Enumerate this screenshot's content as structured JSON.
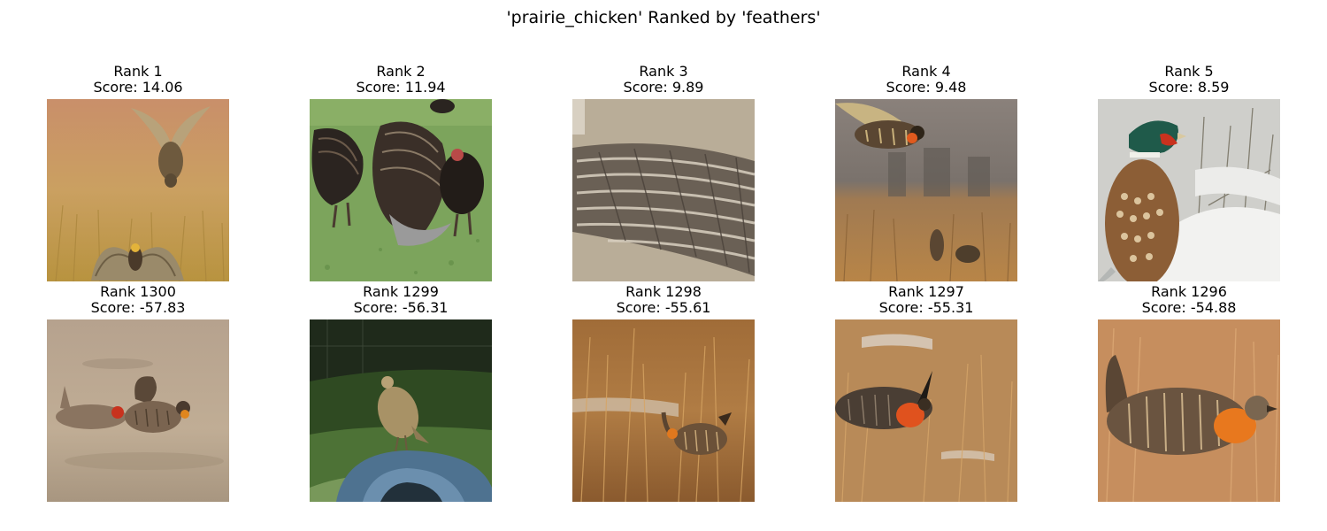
{
  "figure": {
    "title": "'prairie_chicken' Ranked by 'feathers'"
  },
  "top_row": [
    {
      "rank": "Rank 1",
      "score": "Score: 14.06",
      "scene": "two prairie chickens leaping over golden grass",
      "palette": {
        "bg": "#c99b6b",
        "ground": "#c7a45c",
        "bird": "#8f7650"
      }
    },
    {
      "rank": "Rank 2",
      "score": "Score: 11.94",
      "scene": "turkeys displaying on green lawn",
      "palette": {
        "bg": "#7aa35a",
        "ground": "#6f9a4e",
        "bird": "#2a2320"
      }
    },
    {
      "rank": "Rank 3",
      "score": "Score: 9.89",
      "scene": "close-up of barred wing feathers",
      "palette": {
        "bg": "#b8ab95",
        "ground": "#a89c85",
        "bird": "#5e564b"
      }
    },
    {
      "rank": "Rank 4",
      "score": "Score: 9.48",
      "scene": "prairie chicken flying over dry field",
      "palette": {
        "bg": "#7e7670",
        "ground": "#b6824d",
        "bird": "#5a4632"
      }
    },
    {
      "rank": "Rank 5",
      "score": "Score: 8.59",
      "scene": "ring-necked pheasant in snow",
      "palette": {
        "bg": "#dcdcd8",
        "ground": "#f0f0ee",
        "bird": "#8a5a34"
      }
    }
  ],
  "bottom_row": [
    {
      "rank": "Rank 1300",
      "score": "Score: -57.83",
      "scene": "two prairie chickens on pale ground",
      "palette": {
        "bg": "#b9a58e",
        "ground": "#c4b29a",
        "bird": "#7a6450"
      }
    },
    {
      "rank": "Rank 1299",
      "score": "Score: -56.31",
      "scene": "prairie chicken perched on blue barrel at dusk",
      "palette": {
        "bg": "#24301f",
        "ground": "#3d5a2a",
        "bird": "#a89266"
      }
    },
    {
      "rank": "Rank 1298",
      "score": "Score: -55.61",
      "scene": "prairie chicken in tall brown grass",
      "palette": {
        "bg": "#9a6a3a",
        "ground": "#a87540",
        "bird": "#6b5138"
      }
    },
    {
      "rank": "Rank 1297",
      "score": "Score: -55.31",
      "scene": "prairie chicken booming with orange air sac",
      "palette": {
        "bg": "#b98d5c",
        "ground": "#b88752",
        "bird": "#4a3c30"
      }
    },
    {
      "rank": "Rank 1296",
      "score": "Score: -54.88",
      "scene": "close-up of prairie chicken with orange air sac",
      "palette": {
        "bg": "#c08a5e",
        "ground": "#c98f60",
        "bird": "#6a5440"
      }
    }
  ]
}
